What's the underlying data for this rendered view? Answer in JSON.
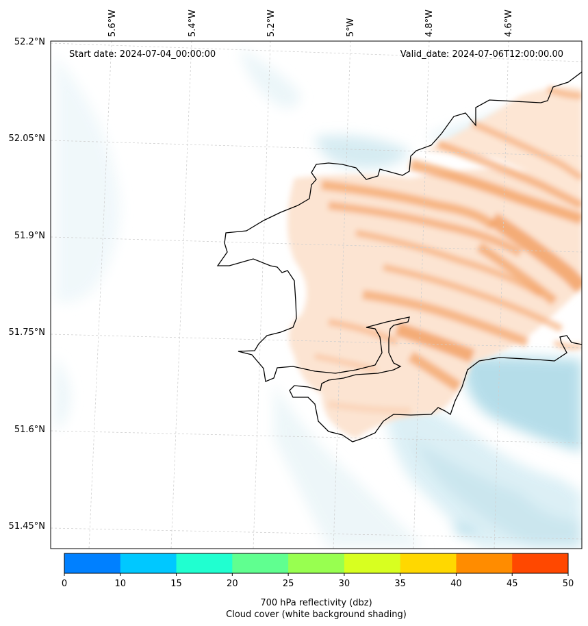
{
  "annotations": {
    "start_date": "Start date: 2024-07-04_00:00:00",
    "valid_date": "Valid_date: 2024-07-06T12:00:00.00"
  },
  "longitude_labels": [
    "5.6°W",
    "5.4°W",
    "5.2°W",
    "5°W",
    "4.8°W",
    "4.6°W"
  ],
  "latitude_labels": [
    "52.2°N",
    "52.05°N",
    "51.9°N",
    "51.75°N",
    "51.6°N",
    "51.45°N"
  ],
  "colorbar": {
    "label_line1": "700 hPa reflectivity (dbz)",
    "label_line2": "Cloud cover (white background shading)",
    "ticks": [
      "0",
      "10",
      "15",
      "20",
      "25",
      "30",
      "35",
      "40",
      "45",
      "50"
    ],
    "colors": [
      "#0080ff",
      "#00c8ff",
      "#20ffd0",
      "#60ff90",
      "#98ff50",
      "#d8ff20",
      "#ffd800",
      "#ff8c00",
      "#ff4800"
    ]
  },
  "map": {
    "projection": "lambert-conformal",
    "region": "Pembrokeshire, Wales",
    "land_fill_color": "#f4a460",
    "cloud_shading_color": "#a8d8e8",
    "coastline_color": "#000000",
    "gridlines": "dashed light grey"
  }
}
